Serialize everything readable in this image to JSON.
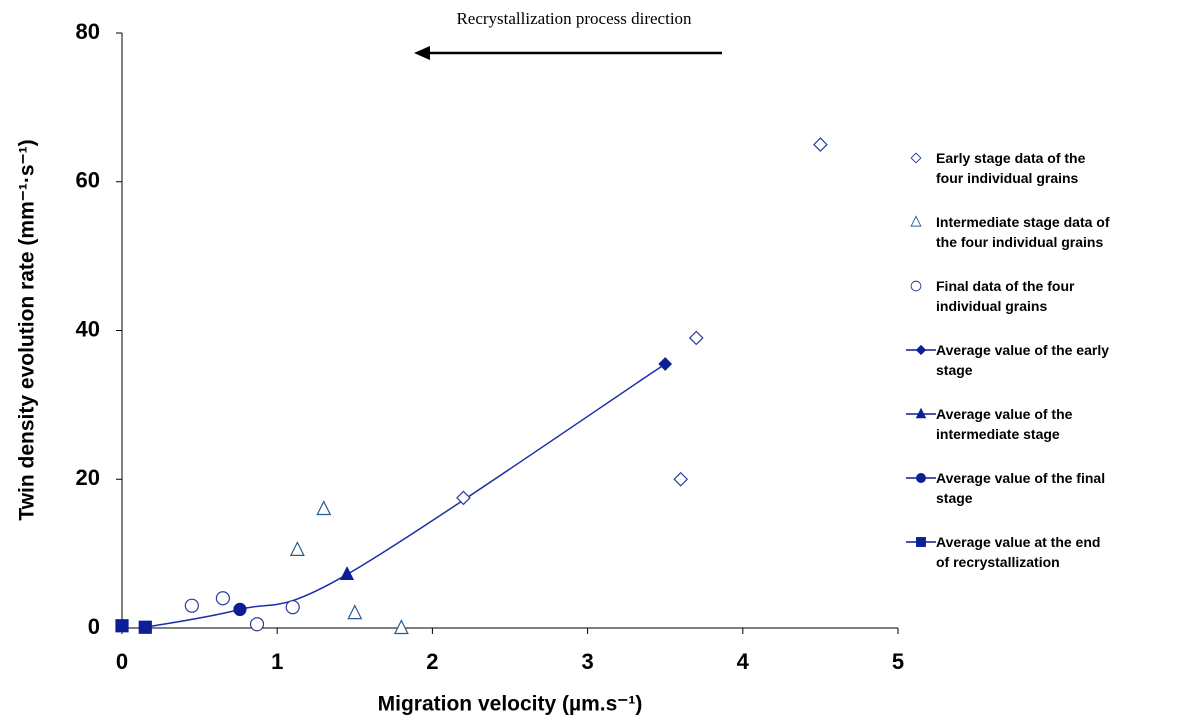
{
  "chart_data": {
    "type": "scatter",
    "annotation": "Recrystallization process direction",
    "x_label": "Migration velocity (µm.s⁻¹)",
    "y_label": "Twin density evolution rate (mm⁻¹·s⁻¹)",
    "xlim": [
      0,
      5
    ],
    "xticks": [
      0,
      1,
      2,
      3,
      4,
      5
    ],
    "ylim": [
      0,
      80
    ],
    "yticks": [
      0,
      20,
      40,
      60,
      80
    ],
    "legend": "right",
    "series": [
      {
        "name": "Early stage data of the four individual grains",
        "color": "#2a3c9c",
        "marker": "diamond",
        "filled": false,
        "x": [
          2.2,
          3.7,
          3.6,
          4.5
        ],
        "values": [
          17.5,
          39,
          20,
          65
        ]
      },
      {
        "name": "Intermediate stage data of the four individual grains",
        "color": "#2a5a8c",
        "marker": "triangle",
        "filled": false,
        "x": [
          1.13,
          1.3,
          1.5,
          1.8
        ],
        "values": [
          10.5,
          16,
          2,
          0
        ]
      },
      {
        "name": "Final data of the four individual grains",
        "color": "#2a3c9c",
        "marker": "circle",
        "filled": false,
        "x": [
          0.45,
          0.65,
          0.87,
          1.1
        ],
        "values": [
          3,
          4,
          0.5,
          2.8
        ]
      },
      {
        "name": "Average value of the early stage",
        "color": "#0c1f94",
        "marker": "diamond",
        "filled": true,
        "x": [
          3.5
        ],
        "values": [
          35.5
        ]
      },
      {
        "name": "Average value of the intermediate stage",
        "color": "#0c1f94",
        "marker": "triangle",
        "filled": true,
        "x": [
          1.45
        ],
        "values": [
          7.2
        ]
      },
      {
        "name": "Average value of the final stage",
        "color": "#0c1f94",
        "marker": "circle",
        "filled": true,
        "x": [
          0.76
        ],
        "values": [
          2.5
        ]
      },
      {
        "name": "Average value at the end of recrystallization",
        "color": "#0c1f94",
        "marker": "square",
        "filled": true,
        "x": [
          0,
          0.15
        ],
        "values": [
          0.3,
          0.1
        ]
      }
    ]
  }
}
